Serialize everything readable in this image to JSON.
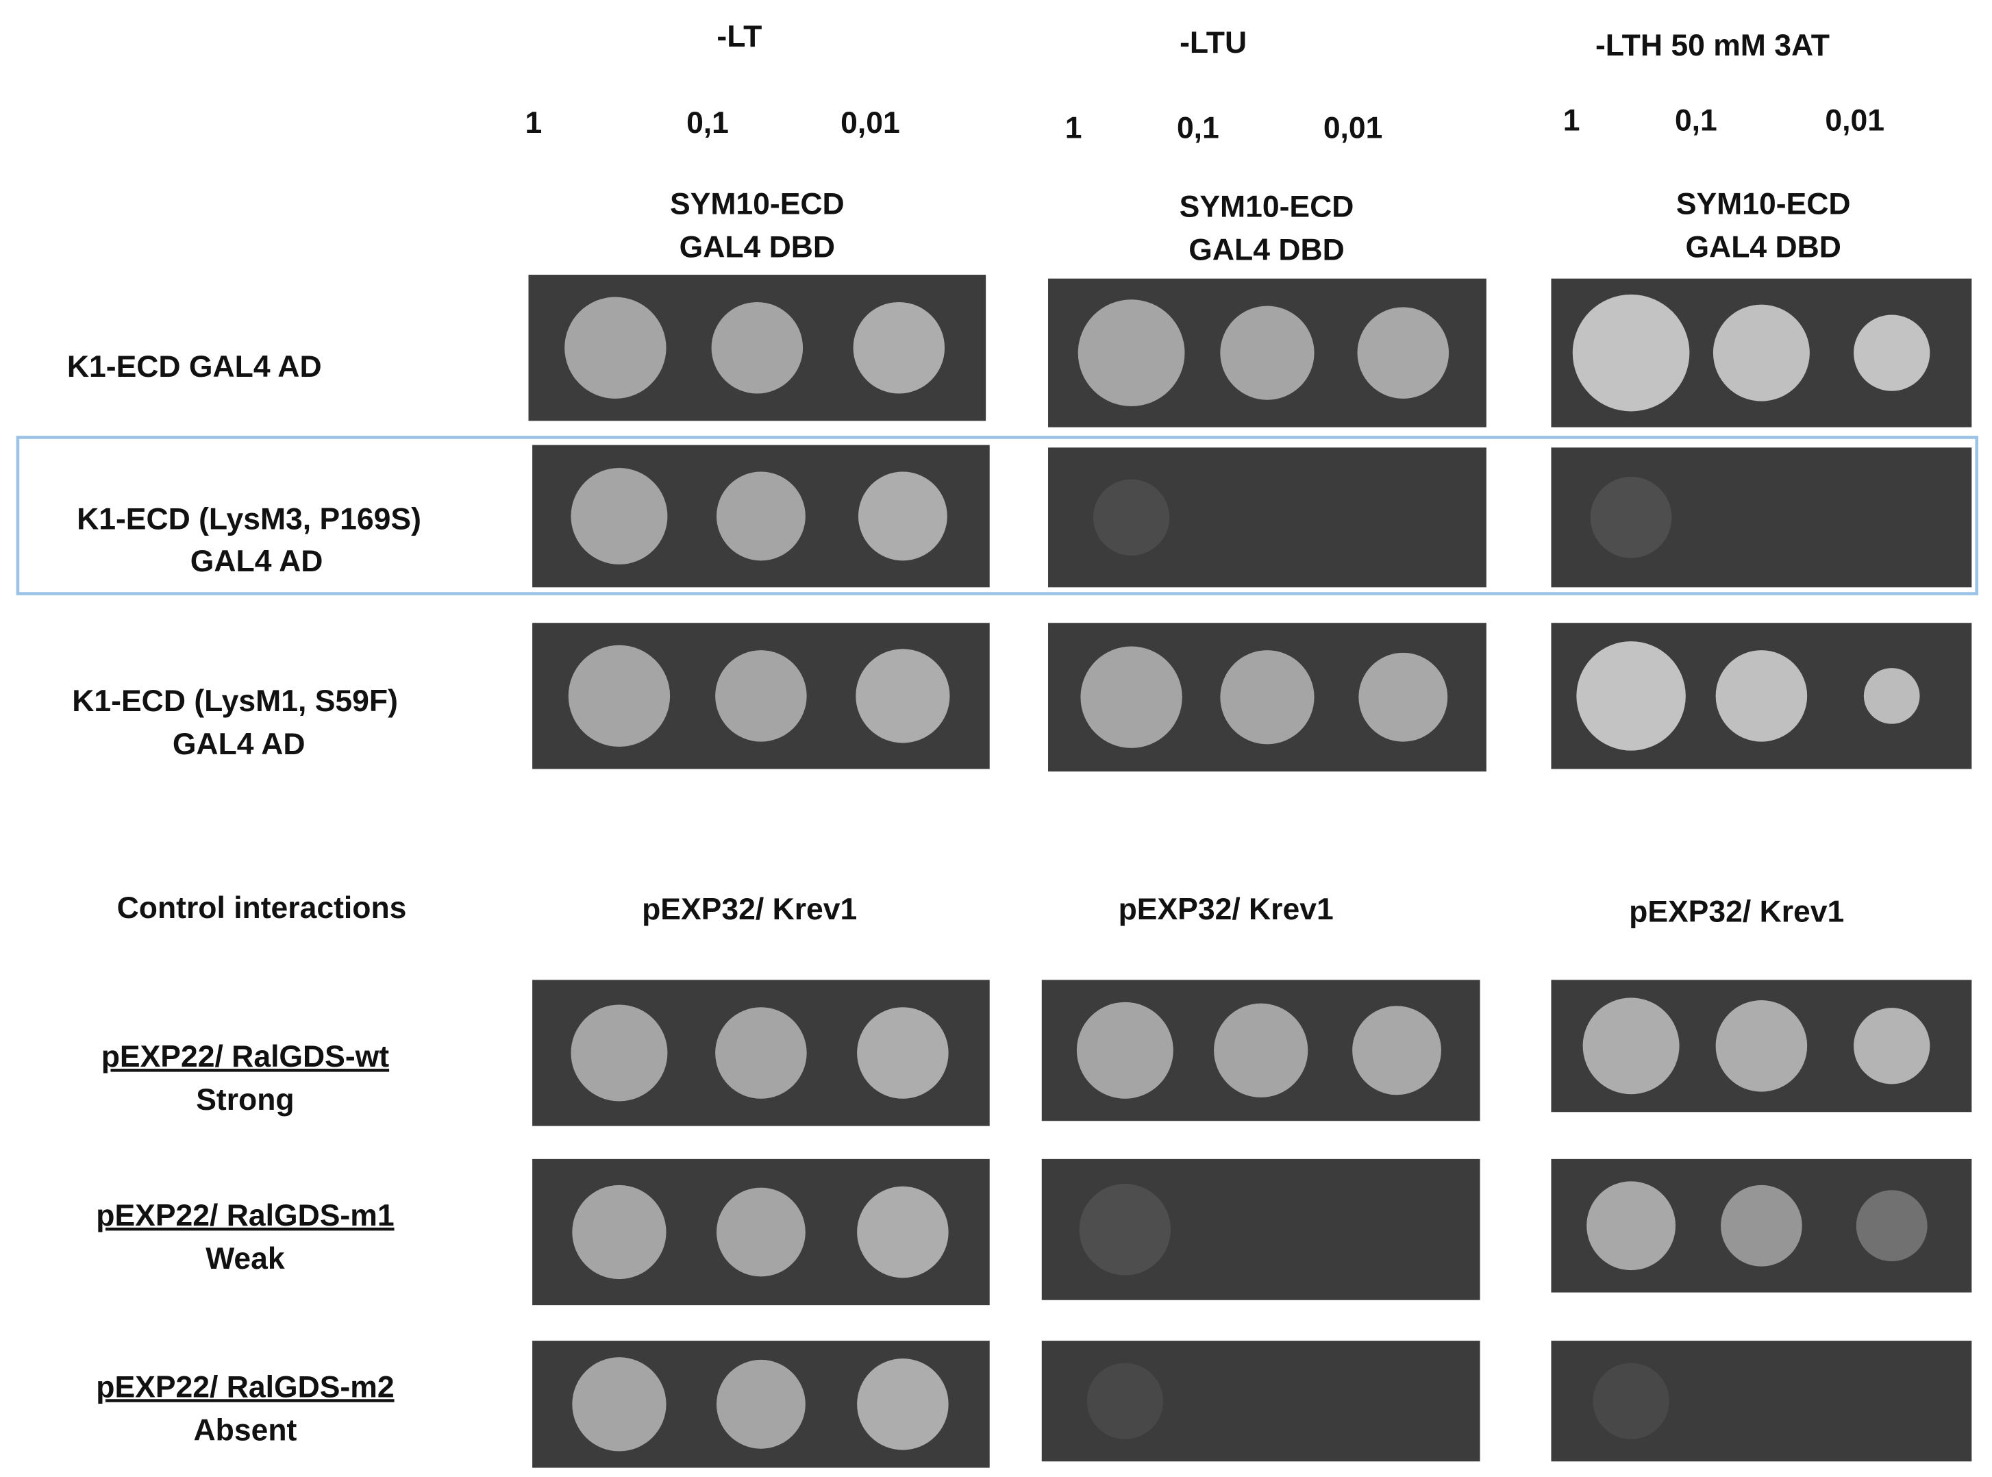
{
  "conditions": [
    {
      "title": "-LT",
      "dilutions": [
        "1",
        "0,1",
        "0,01"
      ],
      "bait": [
        "SYM10-ECD",
        "GAL4 DBD"
      ],
      "control_bait": "pEXP32/ Krev1"
    },
    {
      "title": "-LTU",
      "dilutions": [
        "1",
        "0,1",
        "0,01"
      ],
      "bait": [
        "SYM10-ECD",
        "GAL4 DBD"
      ],
      "control_bait": "pEXP32/ Krev1"
    },
    {
      "title": "-LTH 50 mM 3AT",
      "dilutions": [
        "1",
        "0,1",
        "0,01"
      ],
      "bait": [
        "SYM10-ECD",
        "GAL4 DBD"
      ],
      "control_bait": "pEXP32/ Krev1"
    }
  ],
  "rows": [
    {
      "lines": [
        "K1-ECD GAL4 AD"
      ]
    },
    {
      "lines": [
        "K1-ECD (LysM3, P169S)",
        "GAL4 AD"
      ]
    },
    {
      "lines": [
        "K1-ECD (LysM1, S59F)",
        "GAL4 AD"
      ]
    }
  ],
  "control_title": "Control interactions",
  "control_rows": [
    {
      "label": "pEXP22/ RalGDS-wt",
      "strength": "Strong"
    },
    {
      "label": "pEXP22/ RalGDS-m1",
      "strength": "Weak"
    },
    {
      "label": "pEXP22/ RalGDS-m2",
      "strength": "Absent"
    }
  ]
}
